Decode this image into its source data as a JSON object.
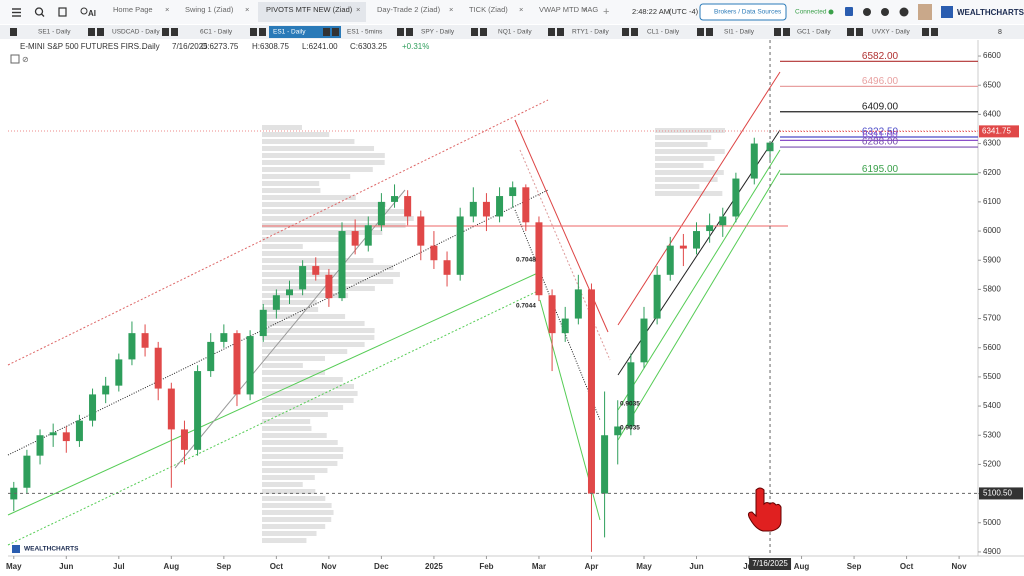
{
  "toolbar": {
    "ai_label": "AI",
    "tabs": [
      "Home Page",
      "Swing 1 (Ziad)",
      "PIVOTS MTF NEW (Ziad)",
      "Day-Trade 2 (Ziad)",
      "TICK (Ziad)",
      "VWAP MTD MAG"
    ],
    "clock": "2:48:22 AM",
    "timezone": "(UTC -4)",
    "broker_button": "Brokers / Data Sources",
    "status": "Connected",
    "brand": "WEALTHCHARTS"
  },
  "watchlist": {
    "items": [
      "SE1 - Daily",
      "USDCAD - Daily",
      "6C1 - Daily",
      "ES1 - Daily",
      "ES1 - 5mins",
      "SPY - Daily",
      "NQ1 - Daily",
      "RTY1 - Daily",
      "CL1 - Daily",
      "SI1 - Daily",
      "GC1 - Daily",
      "UVXY - Daily"
    ],
    "more_count": "8"
  },
  "chart_data": {
    "type": "candlestick",
    "title": "E-MINI S&P 500 FUTURES FIRS...",
    "interval": "· Daily",
    "date": "7/16/2025",
    "ohlc_labels": [
      "O:6273.75",
      "H:6308.75",
      "L:6241.00",
      "C:6303.25"
    ],
    "change": "+0.31%",
    "x": [
      0,
      0.25,
      0.5,
      0.75,
      1,
      1.25,
      1.5,
      1.75,
      2,
      2.25,
      2.5,
      2.75,
      3,
      3.25,
      3.5,
      3.75,
      4,
      4.25,
      4.5,
      4.75,
      5,
      5.25,
      5.5,
      5.75,
      6,
      6.25,
      6.5,
      6.75,
      7,
      7.25,
      7.5,
      7.75,
      8,
      8.25,
      8.5,
      8.75,
      9,
      9.25,
      9.5,
      9.75,
      10,
      10.25,
      10.5,
      10.75,
      11,
      11.25,
      11.5,
      11.75,
      12,
      12.25,
      12.5,
      12.75,
      13,
      13.25,
      13.5,
      13.75,
      14.1,
      14.4
    ],
    "open": [
      5080,
      5120,
      5230,
      5300,
      5310,
      5280,
      5350,
      5440,
      5470,
      5560,
      5650,
      5600,
      5460,
      5320,
      5250,
      5520,
      5620,
      5650,
      5440,
      5640,
      5730,
      5780,
      5800,
      5880,
      5850,
      5770,
      6000,
      5950,
      6020,
      6100,
      6120,
      6050,
      5950,
      5900,
      5850,
      6050,
      6100,
      6050,
      6120,
      6150,
      6030,
      5780,
      5650,
      5700,
      5800,
      5100,
      5300,
      5330,
      5550,
      5700,
      5850,
      5950,
      5940,
      6000,
      6020,
      6050,
      6180,
      6273.75
    ],
    "high": [
      5140,
      5250,
      5320,
      5340,
      5330,
      5370,
      5460,
      5500,
      5580,
      5690,
      5680,
      5620,
      5480,
      5350,
      5540,
      5650,
      5680,
      5660,
      5660,
      5750,
      5800,
      5830,
      5900,
      5910,
      5870,
      6030,
      6040,
      6050,
      6130,
      6160,
      6140,
      6070,
      6000,
      5930,
      6080,
      6150,
      6130,
      6150,
      6170,
      6160,
      6050,
      5800,
      5740,
      5850,
      5820,
      5450,
      5420,
      5580,
      5740,
      5880,
      5980,
      5990,
      6030,
      6060,
      6080,
      6200,
      6320,
      6308.75
    ],
    "low": [
      5040,
      5100,
      5200,
      5260,
      5240,
      5260,
      5330,
      5410,
      5450,
      5540,
      5570,
      5420,
      5120,
      5200,
      5230,
      5500,
      5600,
      5400,
      5420,
      5620,
      5700,
      5750,
      5780,
      5830,
      5740,
      5760,
      5920,
      5930,
      6000,
      6080,
      6020,
      5900,
      5870,
      5810,
      5830,
      6030,
      6000,
      6030,
      6080,
      6000,
      5760,
      5520,
      5620,
      5680,
      4900,
      4950,
      5200,
      5300,
      5530,
      5680,
      5830,
      5880,
      5920,
      5960,
      5980,
      6030,
      6160,
      6241
    ],
    "close": [
      5120,
      5230,
      5300,
      5310,
      5280,
      5350,
      5440,
      5470,
      5560,
      5650,
      5600,
      5460,
      5320,
      5250,
      5520,
      5620,
      5650,
      5440,
      5640,
      5730,
      5780,
      5800,
      5880,
      5850,
      5770,
      6000,
      5950,
      6020,
      6100,
      6120,
      6050,
      5950,
      5900,
      5850,
      6050,
      6100,
      6050,
      6120,
      6150,
      6030,
      5780,
      5650,
      5700,
      5800,
      5100,
      5300,
      5330,
      5550,
      5700,
      5850,
      5950,
      5940,
      6000,
      6020,
      6050,
      6180,
      6300,
      6303.25
    ],
    "up_color": "#2e9e5b",
    "down_color": "#e04848",
    "xlim": [
      -0.11,
      18.36
    ],
    "xticks": [
      {
        "value": 0,
        "label": "May"
      },
      {
        "value": 1,
        "label": "Jun"
      },
      {
        "value": 2,
        "label": "Jul"
      },
      {
        "value": 3,
        "label": "Aug"
      },
      {
        "value": 4,
        "label": "Sep"
      },
      {
        "value": 5,
        "label": "Oct"
      },
      {
        "value": 6,
        "label": "Nov"
      },
      {
        "value": 7,
        "label": "Dec"
      },
      {
        "value": 8,
        "label": "2025"
      },
      {
        "value": 9,
        "label": "Feb"
      },
      {
        "value": 10,
        "label": "Mar"
      },
      {
        "value": 11,
        "label": "Apr"
      },
      {
        "value": 12,
        "label": "May"
      },
      {
        "value": 13,
        "label": "Jun"
      },
      {
        "value": 14,
        "label": "Jul"
      },
      {
        "value": 15,
        "label": "Aug"
      },
      {
        "value": 16,
        "label": "Sep"
      },
      {
        "value": 17,
        "label": "Oct"
      },
      {
        "value": 18,
        "label": "Nov"
      }
    ],
    "ylim": [
      4886,
      6655
    ],
    "yticks": [
      6600,
      6500,
      6400,
      6300,
      6200,
      6100,
      6000,
      5900,
      5800,
      5700,
      5600,
      5500,
      5400,
      5300,
      5200,
      5100,
      5000,
      4900
    ],
    "last_price": {
      "value": 6341.75,
      "label": "6341.75"
    },
    "crosshair": {
      "x": 14.4,
      "x_label": "7/16/2025",
      "y": {
        "value": 5100.5,
        "label": "5100.50"
      }
    },
    "levels": [
      {
        "value": 6582,
        "label": "6582.00",
        "color": "#b03030"
      },
      {
        "value": 6496,
        "label": "6496.00",
        "color": "#e8a0a0"
      },
      {
        "value": 6409,
        "label": "6409.00",
        "color": "#222222"
      },
      {
        "value": 6322.5,
        "label": "6322.50",
        "color": "#4a4ac8"
      },
      {
        "value": 6311,
        "label": "6311.00",
        "color": "#8a4fc8"
      },
      {
        "value": 6288,
        "label": "6288.00",
        "color": "#7a4fb0"
      },
      {
        "value": 6195,
        "label": "6195.00",
        "color": "#3aa04a"
      }
    ],
    "fib_labels": [
      "0.7048",
      "0.7044",
      "0.9035",
      "0.9035"
    ],
    "watermark": "WEALTHCHARTS"
  }
}
